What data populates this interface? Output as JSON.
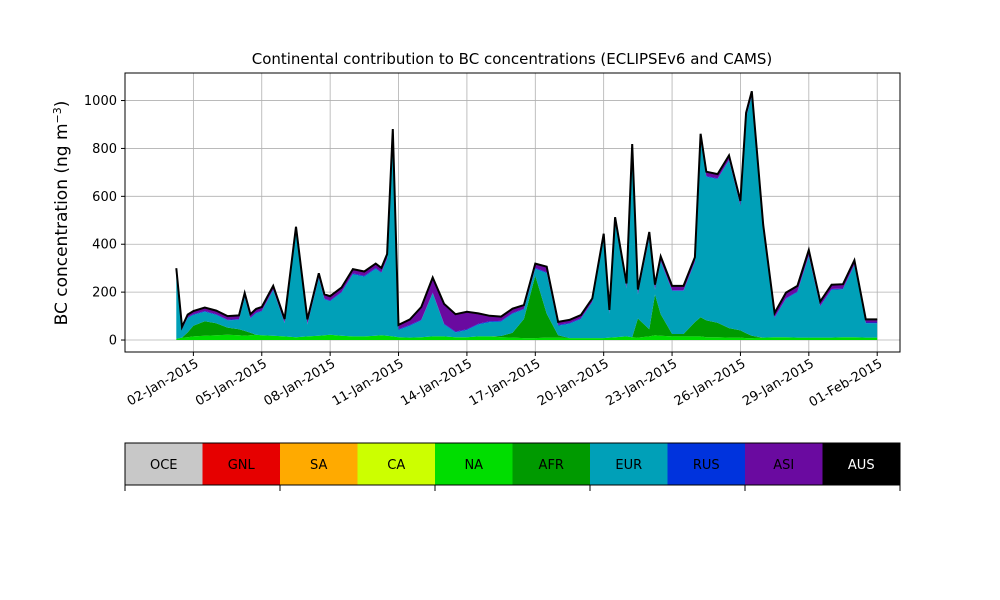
{
  "chart_data": {
    "type": "area",
    "title": "Continental contribution to BC concentrations (ECLIPSEv6 and CAMS)",
    "ylabel_main": "BC concentration (ng m",
    "ylabel_sup": "−3",
    "ylabel_tail": ")",
    "xlabel": "",
    "x_unit": "date",
    "xlim": [
      "2014-12-30",
      "2015-02-02"
    ],
    "ylim": [
      -50,
      1115
    ],
    "grid": true,
    "x_ticks": [
      {
        "date": "2015-01-02",
        "label": "02-Jan-2015"
      },
      {
        "date": "2015-01-05",
        "label": "05-Jan-2015"
      },
      {
        "date": "2015-01-08",
        "label": "08-Jan-2015"
      },
      {
        "date": "2015-01-11",
        "label": "11-Jan-2015"
      },
      {
        "date": "2015-01-14",
        "label": "14-Jan-2015"
      },
      {
        "date": "2015-01-17",
        "label": "17-Jan-2015"
      },
      {
        "date": "2015-01-20",
        "label": "20-Jan-2015"
      },
      {
        "date": "2015-01-23",
        "label": "23-Jan-2015"
      },
      {
        "date": "2015-01-26",
        "label": "26-Jan-2015"
      },
      {
        "date": "2015-01-29",
        "label": "29-Jan-2015"
      },
      {
        "date": "2015-02-01",
        "label": "01-Feb-2015"
      }
    ],
    "y_ticks": [
      {
        "value": 0,
        "label": "0"
      },
      {
        "value": 200,
        "label": "200"
      },
      {
        "value": 400,
        "label": "400"
      },
      {
        "value": 600,
        "label": "600"
      },
      {
        "value": 800,
        "label": "800"
      },
      {
        "value": 1000,
        "label": "1000"
      }
    ],
    "legend_placement": "bottom colorbar",
    "legend": [
      {
        "label": "OCE",
        "color": "#c8c8c8"
      },
      {
        "label": "GNL",
        "color": "#e60000"
      },
      {
        "label": "SA",
        "color": "#ffaa00"
      },
      {
        "label": "CA",
        "color": "#ccff00"
      },
      {
        "label": "NA",
        "color": "#00dd00"
      },
      {
        "label": "AFR",
        "color": "#009a00"
      },
      {
        "label": "EUR",
        "color": "#00a0b8"
      },
      {
        "label": "RUS",
        "color": "#0033dd"
      },
      {
        "label": "ASI",
        "color": "#6a0aa0"
      },
      {
        "label": "AUS",
        "color": "#000000"
      }
    ],
    "x": [
      "2015-01-01T06",
      "2015-01-01T12",
      "2015-01-01T18",
      "2015-01-02",
      "2015-01-02T12",
      "2015-01-03",
      "2015-01-03T12",
      "2015-01-04",
      "2015-01-04T06",
      "2015-01-04T12",
      "2015-01-04T18",
      "2015-01-05",
      "2015-01-05T12",
      "2015-01-06",
      "2015-01-06T12",
      "2015-01-07",
      "2015-01-07T12",
      "2015-01-07T18",
      "2015-01-08",
      "2015-01-08T12",
      "2015-01-09",
      "2015-01-09T12",
      "2015-01-10",
      "2015-01-10T06",
      "2015-01-10T12",
      "2015-01-10T18",
      "2015-01-11",
      "2015-01-11T12",
      "2015-01-12",
      "2015-01-12T12",
      "2015-01-13",
      "2015-01-13T12",
      "2015-01-14",
      "2015-01-14T12",
      "2015-01-15",
      "2015-01-15T12",
      "2015-01-16",
      "2015-01-16T12",
      "2015-01-17",
      "2015-01-17T12",
      "2015-01-18",
      "2015-01-18T12",
      "2015-01-19",
      "2015-01-19T12",
      "2015-01-20",
      "2015-01-20T06",
      "2015-01-20T12",
      "2015-01-21",
      "2015-01-21T06",
      "2015-01-21T12",
      "2015-01-22",
      "2015-01-22T06",
      "2015-01-22T12",
      "2015-01-23",
      "2015-01-23T12",
      "2015-01-24",
      "2015-01-24T06",
      "2015-01-24T12",
      "2015-01-25",
      "2015-01-25T12",
      "2015-01-26",
      "2015-01-26T06",
      "2015-01-26T12",
      "2015-01-27",
      "2015-01-27T12",
      "2015-01-28",
      "2015-01-28T12",
      "2015-01-29",
      "2015-01-29T12",
      "2015-01-30",
      "2015-01-30T12",
      "2015-01-31",
      "2015-01-31T12",
      "2015-02-01"
    ],
    "series": [
      {
        "name": "NA",
        "values": [
          5,
          10,
          12,
          15,
          18,
          20,
          22,
          20,
          18,
          20,
          22,
          20,
          18,
          15,
          12,
          15,
          18,
          20,
          22,
          18,
          15,
          15,
          18,
          20,
          18,
          15,
          12,
          10,
          12,
          15,
          15,
          12,
          12,
          15,
          15,
          12,
          10,
          8,
          8,
          10,
          10,
          8,
          8,
          8,
          8,
          10,
          12,
          15,
          12,
          10,
          15,
          20,
          18,
          15,
          15,
          15,
          15,
          12,
          12,
          10,
          10,
          8,
          8,
          10,
          12,
          12,
          10,
          10,
          10,
          10,
          12,
          12,
          10,
          10
        ]
      },
      {
        "name": "AFR",
        "values": [
          0,
          0,
          20,
          45,
          60,
          50,
          30,
          25,
          20,
          10,
          0,
          0,
          0,
          0,
          0,
          0,
          0,
          0,
          0,
          0,
          0,
          0,
          0,
          0,
          0,
          0,
          0,
          0,
          0,
          0,
          0,
          0,
          0,
          0,
          0,
          5,
          20,
          80,
          260,
          100,
          10,
          0,
          0,
          0,
          0,
          0,
          0,
          0,
          0,
          80,
          30,
          170,
          90,
          10,
          10,
          60,
          80,
          70,
          60,
          40,
          30,
          20,
          10,
          0,
          0,
          0,
          0,
          0,
          0,
          0,
          0,
          0,
          0,
          0
        ]
      },
      {
        "name": "EUR",
        "values": [
          285,
          35,
          60,
          45,
          40,
          35,
          30,
          40,
          140,
          60,
          90,
          100,
          190,
          55,
          440,
          50,
          240,
          150,
          140,
          180,
          260,
          250,
          280,
          260,
          320,
          840,
          30,
          50,
          70,
          180,
          50,
          20,
          30,
          50,
          60,
          60,
          80,
          40,
          30,
          170,
          40,
          60,
          80,
          150,
          420,
          100,
          480,
          200,
          780,
          100,
          380,
          20,
          220,
          180,
          180,
          250,
          740,
          600,
          600,
          700,
          520,
          900,
          1000,
          450,
          80,
          160,
          190,
          340,
          130,
          200,
          200,
          300,
          60,
          60
        ]
      },
      {
        "name": "RUS",
        "values": [
          2,
          2,
          3,
          3,
          3,
          3,
          3,
          3,
          3,
          3,
          3,
          3,
          3,
          3,
          3,
          3,
          3,
          3,
          3,
          3,
          3,
          3,
          3,
          3,
          3,
          3,
          3,
          3,
          3,
          3,
          3,
          3,
          3,
          3,
          3,
          3,
          3,
          3,
          3,
          3,
          3,
          3,
          3,
          3,
          3,
          3,
          3,
          3,
          3,
          3,
          3,
          3,
          3,
          3,
          3,
          3,
          3,
          3,
          3,
          3,
          3,
          3,
          3,
          3,
          3,
          3,
          3,
          3,
          3,
          3,
          3,
          3,
          3,
          3
        ]
      },
      {
        "name": "ASI",
        "values": [
          5,
          5,
          8,
          10,
          12,
          12,
          12,
          12,
          12,
          12,
          12,
          12,
          12,
          12,
          15,
          15,
          15,
          15,
          15,
          15,
          15,
          15,
          15,
          15,
          15,
          20,
          15,
          20,
          50,
          60,
          80,
          70,
          70,
          40,
          20,
          15,
          15,
          12,
          15,
          20,
          10,
          10,
          10,
          10,
          10,
          10,
          15,
          15,
          20,
          15,
          20,
          15,
          15,
          15,
          15,
          15,
          20,
          15,
          15,
          15,
          15,
          15,
          15,
          15,
          15,
          20,
          20,
          20,
          15,
          15,
          15,
          15,
          10,
          10
        ]
      },
      {
        "name": "AUS",
        "values": [
          3,
          3,
          3,
          3,
          3,
          3,
          3,
          3,
          3,
          3,
          3,
          3,
          3,
          3,
          3,
          3,
          3,
          3,
          3,
          3,
          3,
          3,
          3,
          3,
          3,
          3,
          3,
          3,
          3,
          3,
          3,
          3,
          3,
          3,
          3,
          3,
          3,
          3,
          3,
          3,
          3,
          3,
          3,
          3,
          3,
          3,
          3,
          3,
          3,
          3,
          3,
          3,
          3,
          3,
          3,
          3,
          3,
          3,
          3,
          3,
          3,
          3,
          3,
          3,
          3,
          3,
          3,
          3,
          3,
          3,
          3,
          3,
          3,
          3
        ]
      }
    ]
  }
}
